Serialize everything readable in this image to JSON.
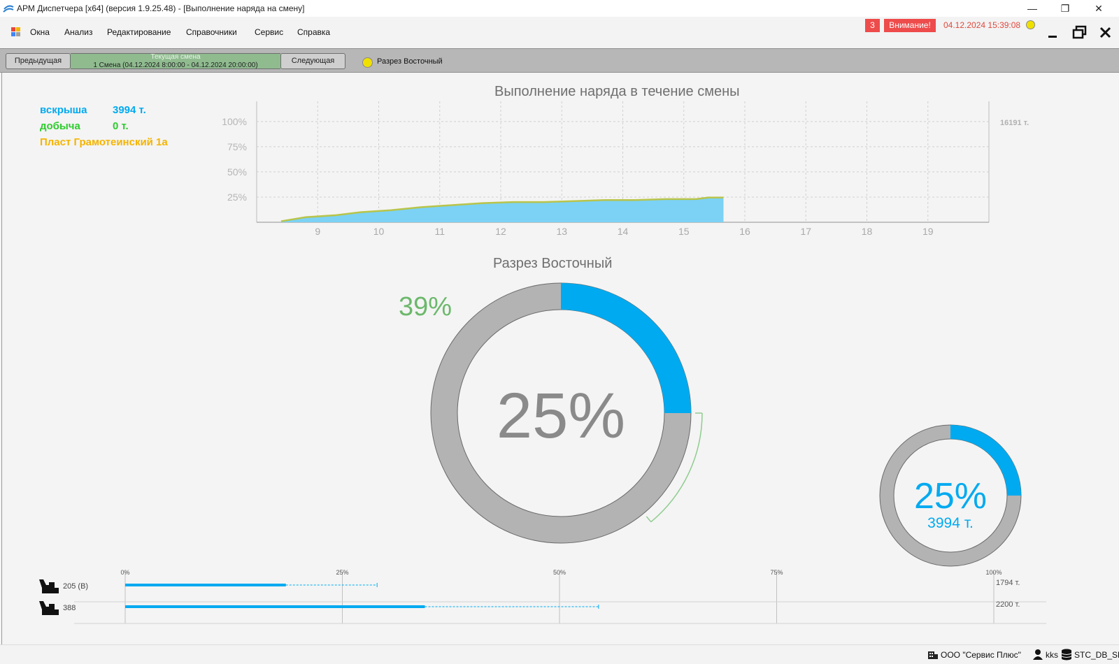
{
  "window": {
    "title": "АРМ Диспетчера [x64] (версия 1.9.25.48) - [Выполнение наряда на смену]",
    "controls": {
      "minimize": "—",
      "restore": "❐",
      "close": "✕"
    }
  },
  "menu": {
    "items": [
      {
        "label": "Окна"
      },
      {
        "label": "Анализ"
      },
      {
        "label": "Редактирование"
      },
      {
        "label": "Справочники"
      },
      {
        "label": "Сервис"
      },
      {
        "label": "Справка"
      }
    ],
    "alert_count": "3",
    "alert_label": "Внимание!",
    "datetime": "04.12.2024 15:39:08"
  },
  "shift_bar": {
    "prev_label": "Предыдущая",
    "current_title": "Текущая смена",
    "current_shift": "1 Смена (04.12.2024 8:00:00 - 04.12.2024 20:00:00)",
    "next_label": "Следующая",
    "mine": "Разрез Восточный"
  },
  "legend": {
    "overburden_label": "вскрыша",
    "overburden_value": "3994 т.",
    "production_label": "добыча",
    "production_value": "0 т.",
    "seam_label": "Пласт Грамотеинский 1а"
  },
  "colors": {
    "accent_blue": "#00aaf0",
    "area_fill": "#7bd2f5",
    "green": "#2ecc2e",
    "orange": "#f5a623",
    "gray_ring": "#b3b3b3",
    "alert_red": "#ee4b4b"
  },
  "chart_data": {
    "type": "area",
    "title": "Выполнение наряда в течение смены",
    "x_ticks": [
      "9",
      "10",
      "11",
      "12",
      "13",
      "14",
      "15",
      "16",
      "17",
      "18",
      "19"
    ],
    "y_ticks": [
      "100%",
      "75%",
      "50%",
      "25%"
    ],
    "y_right_label": "16191 т.",
    "xlim": [
      8,
      20
    ],
    "ylim": [
      0,
      120
    ],
    "series": [
      {
        "x": [
          8.4,
          8.8,
          9.3,
          9.7,
          10.2,
          10.7,
          11.2,
          11.7,
          12.2,
          12.7,
          13.2,
          13.7,
          14.2,
          14.7,
          15.2,
          15.4,
          15.65
        ],
        "y": [
          1,
          5,
          7,
          10,
          12,
          15,
          17,
          19,
          20,
          20,
          21,
          22,
          22,
          23,
          23,
          24.5,
          24.5
        ]
      }
    ]
  },
  "gauge_main": {
    "title": "Разрез Восточный",
    "percent_label": "25%",
    "percent_value": 25,
    "expected_label": "39%",
    "expected_value": 39
  },
  "gauge_small": {
    "percent_label": "25%",
    "percent_value": 25,
    "tonnage_label": "3994 т."
  },
  "equipment": {
    "scale_ticks": [
      "0%",
      "25%",
      "50%",
      "75%",
      "100%"
    ],
    "rows": [
      {
        "name": "205 (В)",
        "actual_pct": 18.5,
        "planned_pct": 29,
        "plan_label": "1794 т."
      },
      {
        "name": "388",
        "actual_pct": 34.5,
        "planned_pct": 54.5,
        "plan_label": "2200 т."
      }
    ]
  },
  "statusbar": {
    "company": "ООО \"Сервис Плюс\"",
    "user": "kks",
    "database": "STC_DB_SP"
  }
}
